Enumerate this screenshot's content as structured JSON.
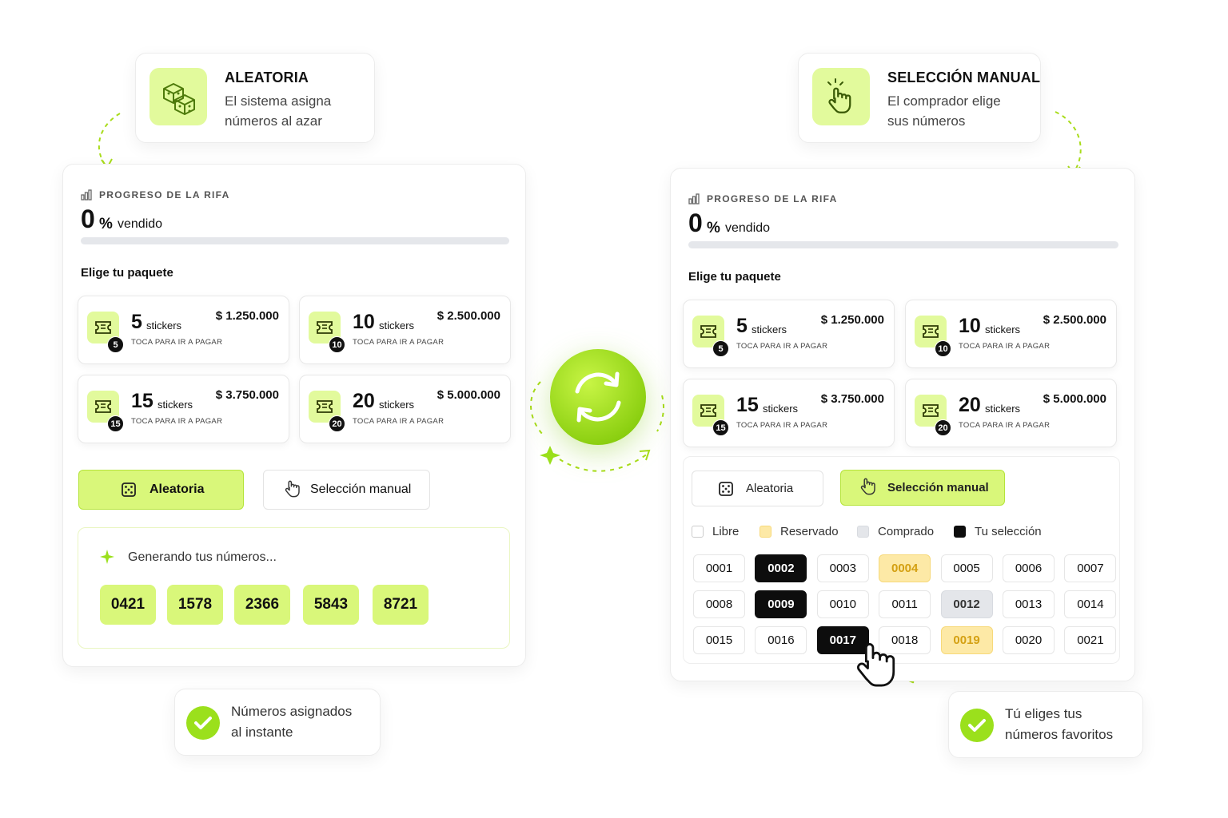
{
  "callouts": [
    {
      "title": "ALEATORIA",
      "lines": [
        "El sistema asigna",
        "números al azar"
      ]
    },
    {
      "title": "SELECCIÓN MANUAL",
      "lines": [
        "El comprador elige",
        "sus números"
      ]
    }
  ],
  "panels": [
    {
      "progress_label": "PROGRESO DE LA RIFA",
      "percent": 0,
      "percent_sign": "%",
      "sold_label": "vendido",
      "packages_title": "Elige tu paquete",
      "packages": [
        {
          "count": 5,
          "unit": "stickers",
          "price": "$ 1.250.000",
          "cta": "TOCA PARA IR A PAGAR"
        },
        {
          "count": 10,
          "unit": "stickers",
          "price": "$ 2.500.000",
          "cta": "TOCA PARA IR A PAGAR"
        },
        {
          "count": 15,
          "unit": "stickers",
          "price": "$ 3.750.000",
          "cta": "TOCA PARA IR A PAGAR"
        },
        {
          "count": 20,
          "unit": "stickers",
          "price": "$ 5.000.000",
          "cta": "TOCA PARA IR A PAGAR"
        }
      ],
      "modes": [
        {
          "label": "Aleatoria",
          "active": true
        },
        {
          "label": "Selección manual",
          "active": false
        }
      ],
      "generating": {
        "label": "Generando tus números...",
        "numbers": [
          "0421",
          "1578",
          "2366",
          "5843",
          "8721"
        ]
      }
    },
    {
      "progress_label": "PROGRESO DE LA RIFA",
      "percent": 0,
      "percent_sign": "%",
      "sold_label": "vendido",
      "packages_title": "Elige tu paquete",
      "packages": [
        {
          "count": 5,
          "unit": "stickers",
          "price": "$ 1.250.000",
          "cta": "TOCA PARA IR A PAGAR"
        },
        {
          "count": 10,
          "unit": "stickers",
          "price": "$ 2.500.000",
          "cta": "TOCA PARA IR A PAGAR"
        },
        {
          "count": 15,
          "unit": "stickers",
          "price": "$ 3.750.000",
          "cta": "TOCA PARA IR A PAGAR"
        },
        {
          "count": 20,
          "unit": "stickers",
          "price": "$ 5.000.000",
          "cta": "TOCA PARA IR A PAGAR"
        }
      ],
      "modes": [
        {
          "label": "Aleatoria",
          "active": false
        },
        {
          "label": "Selección manual",
          "active": true
        }
      ],
      "legend": [
        {
          "label": "Libre",
          "status": "free"
        },
        {
          "label": "Reservado",
          "status": "reserved"
        },
        {
          "label": "Comprado",
          "status": "bought"
        },
        {
          "label": "Tu selección",
          "status": "selected"
        }
      ],
      "grid": [
        {
          "label": "0001",
          "status": "free"
        },
        {
          "label": "0002",
          "status": "selected"
        },
        {
          "label": "0003",
          "status": "free"
        },
        {
          "label": "0004",
          "status": "reserved"
        },
        {
          "label": "0005",
          "status": "free"
        },
        {
          "label": "0006",
          "status": "free"
        },
        {
          "label": "0007",
          "status": "free"
        },
        {
          "label": "0008",
          "status": "free"
        },
        {
          "label": "0009",
          "status": "selected"
        },
        {
          "label": "0010",
          "status": "free"
        },
        {
          "label": "0011",
          "status": "free"
        },
        {
          "label": "0012",
          "status": "bought"
        },
        {
          "label": "0013",
          "status": "free"
        },
        {
          "label": "0014",
          "status": "free"
        },
        {
          "label": "0015",
          "status": "free"
        },
        {
          "label": "0016",
          "status": "free"
        },
        {
          "label": "0017",
          "status": "selected"
        },
        {
          "label": "0018",
          "status": "free"
        },
        {
          "label": "0019",
          "status": "reserved"
        },
        {
          "label": "0020",
          "status": "free"
        },
        {
          "label": "0021",
          "status": "free"
        }
      ]
    }
  ],
  "footers": [
    {
      "lines": [
        "Números asignados",
        "al instante"
      ]
    },
    {
      "lines": [
        "Tú eliges tus",
        "números favoritos"
      ]
    }
  ]
}
